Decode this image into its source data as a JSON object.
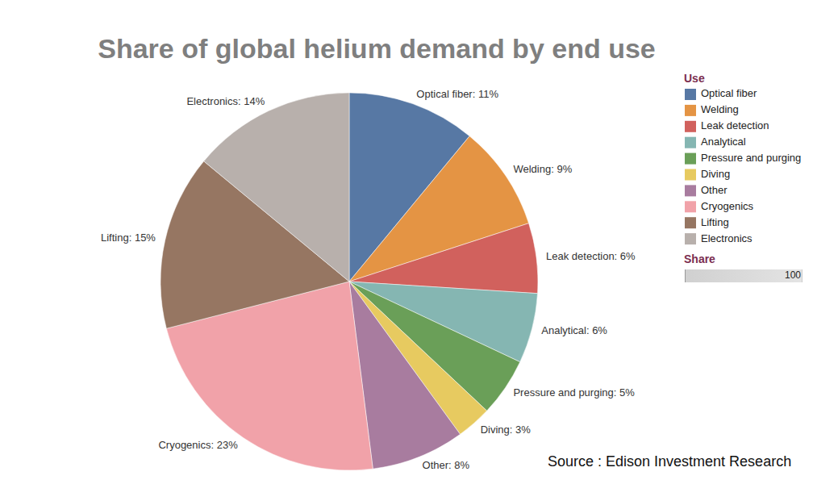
{
  "chart_data": {
    "type": "pie",
    "title": "Share of global helium demand by end use",
    "categories": [
      "Optical fiber",
      "Welding",
      "Leak detection",
      "Analytical",
      "Pressure and purging",
      "Diving",
      "Other",
      "Cryogenics",
      "Lifting",
      "Electronics"
    ],
    "values": [
      11,
      9,
      6,
      6,
      5,
      3,
      8,
      23,
      15,
      14
    ],
    "value_labels": [
      "Optical fiber: 11%",
      "Welding: 9%",
      "Leak detection: 6%",
      "Analytical: 6%",
      "Pressure and purging: 5%",
      "Diving: 3%",
      "Other: 8%",
      "Cryogenics: 23%",
      "Lifting: 15%",
      "Electronics: 14%"
    ],
    "colors": [
      "#5778a4",
      "#e49444",
      "#d1615d",
      "#85b6b2",
      "#6a9f58",
      "#e7ca60",
      "#a87c9f",
      "#f1a2a9",
      "#967662",
      "#b8b0ac"
    ],
    "data_labels": true,
    "legend": "right",
    "legend_title": "Use",
    "scale_title": "Share",
    "scale_max": 100,
    "source": "Source : Edison Investment Research"
  }
}
